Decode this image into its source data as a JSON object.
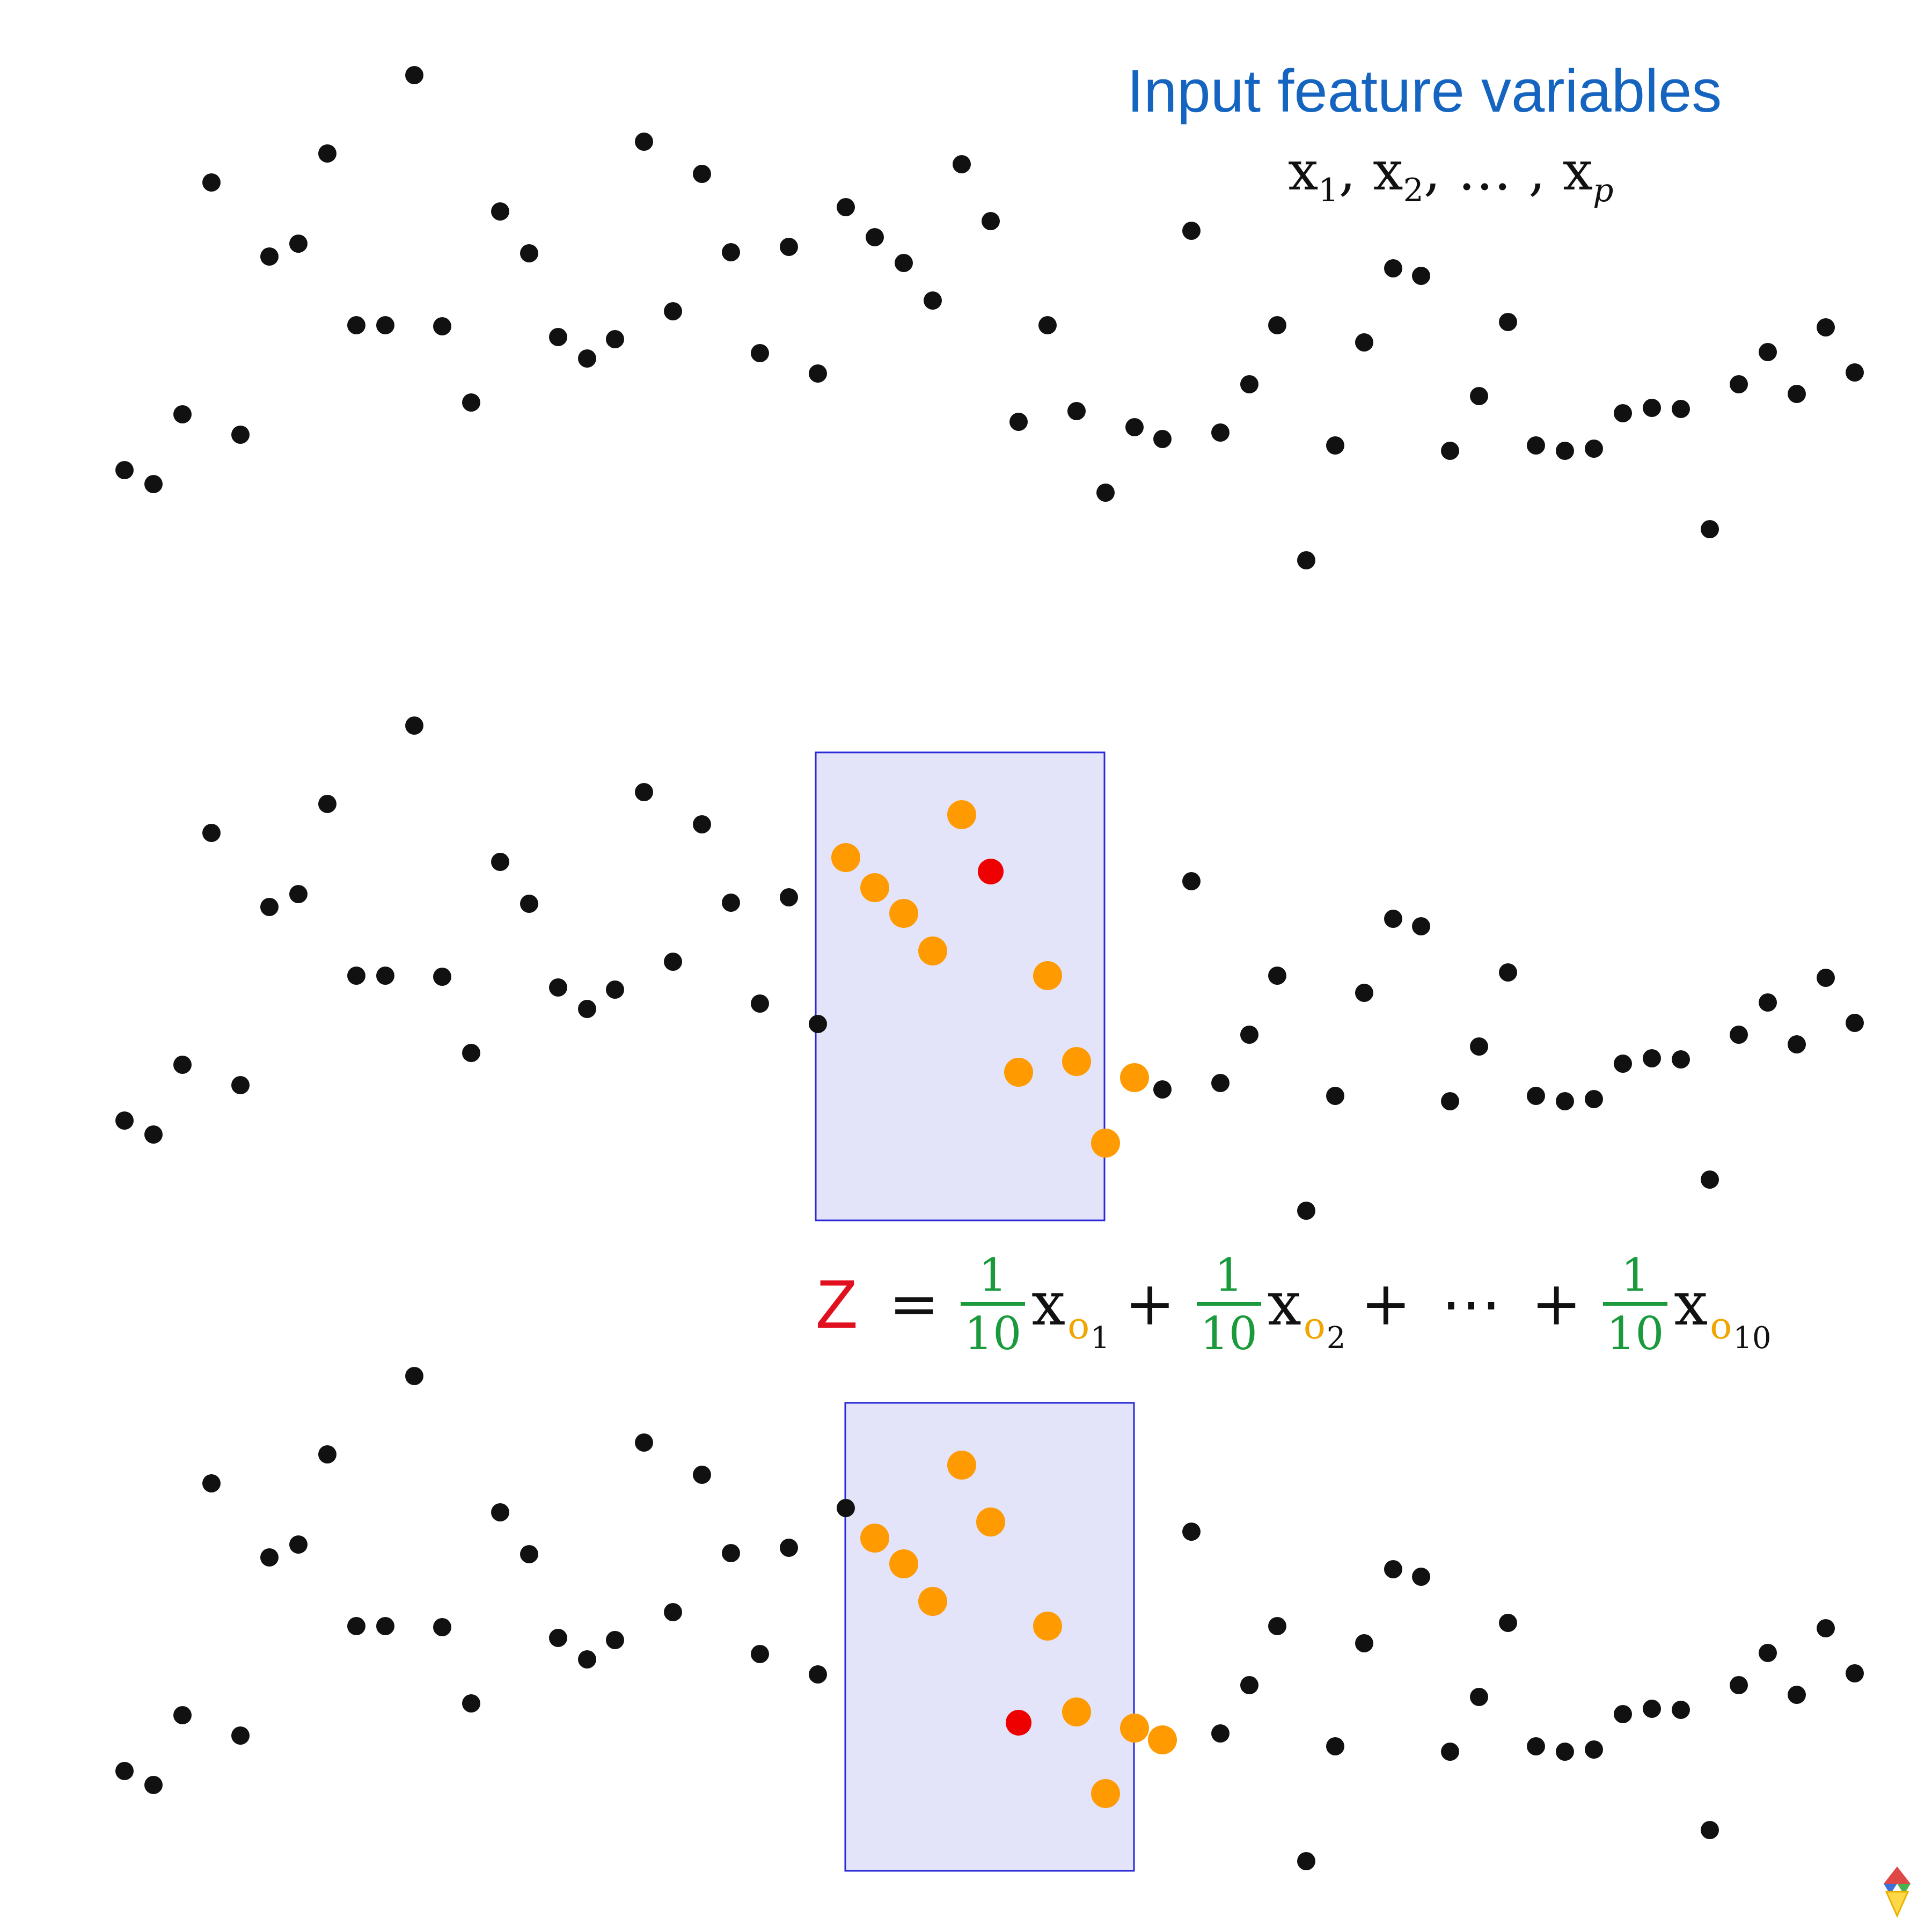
{
  "title": "Input feature variables",
  "variables": {
    "x": "x",
    "sub_1": "1",
    "sep_1": ", ",
    "sub_2": "2",
    "ellipsis": ", … , ",
    "sub_p": "p"
  },
  "formula": {
    "z": "Z",
    "equals": "=",
    "coef_num": "1",
    "coef_den": "10",
    "var": "x",
    "obs": "o",
    "idx_1": "1",
    "idx_2": "2",
    "idx_10": "10",
    "plus": "+",
    "dots": "⋯"
  },
  "colors": {
    "point": "#111111",
    "neighbor": "#ff9a00",
    "target": "#ee0000",
    "window_fill": "#e3e3f9",
    "window_border": "#2a2ad8",
    "title": "#1565c0",
    "coefficient": "#1a9a3c"
  },
  "panels": [
    {
      "name": "all-points",
      "window": null
    },
    {
      "name": "window-1",
      "window": {
        "neighbor_indices": [
          25,
          26,
          27,
          28,
          29,
          30,
          31,
          32,
          33,
          34,
          35
        ],
        "target_index": 30
      }
    },
    {
      "name": "window-2",
      "window": {
        "neighbor_indices": [
          26,
          27,
          28,
          29,
          30,
          31,
          32,
          33,
          34,
          35,
          36
        ],
        "target_index": 31
      }
    }
  ]
}
